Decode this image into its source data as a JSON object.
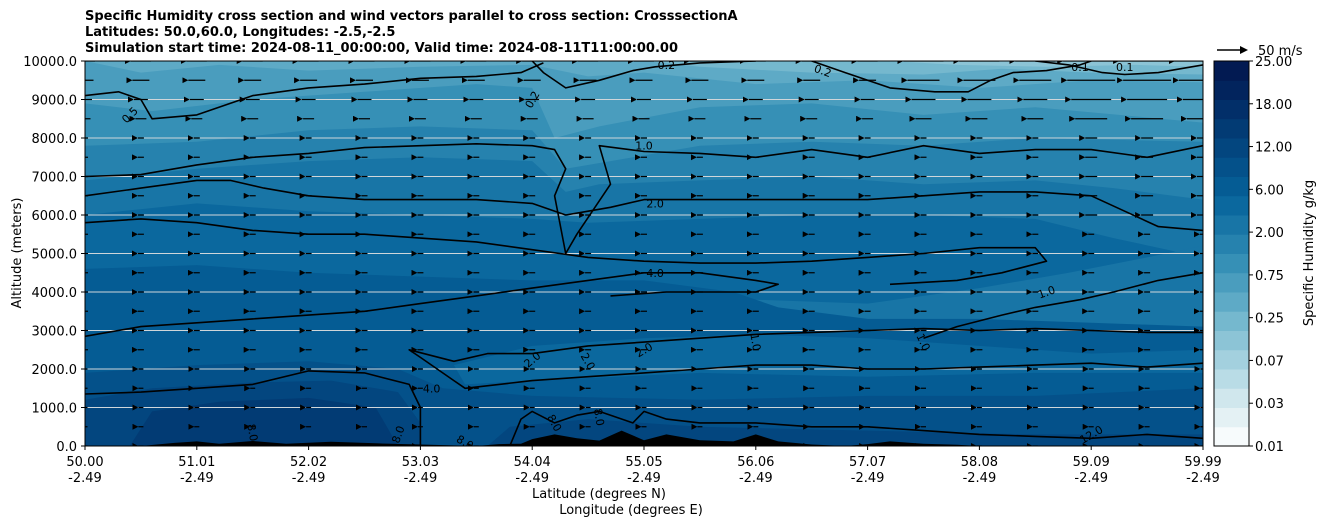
{
  "title_lines": [
    "Specific Humidity cross section and wind vectors parallel to cross section: CrosssectionA",
    "Latitudes: 50.0,60.0, Longitudes: -2.5,-2.5",
    "Simulation start time: 2024-08-11_00:00:00, Valid time: 2024-08-11T11:00:00.00"
  ],
  "chart_data": {
    "type": "heatmap",
    "subtype": "filled contour cross section with contour lines and wind quiver",
    "ylabel": "Altitude (meters)",
    "xlabel_lines": [
      "Latitude (degrees N)",
      "Longitude (degrees E)"
    ],
    "y_range": [
      0,
      10000
    ],
    "y_ticks": [
      "0.0",
      "1000.0",
      "2000.0",
      "3000.0",
      "4000.0",
      "5000.0",
      "6000.0",
      "7000.0",
      "8000.0",
      "9000.0",
      "10000.0"
    ],
    "x_range": [
      0,
      10
    ],
    "x_ticks": [
      {
        "lat": "50.00",
        "lon": "-2.49"
      },
      {
        "lat": "51.01",
        "lon": "-2.49"
      },
      {
        "lat": "52.02",
        "lon": "-2.49"
      },
      {
        "lat": "53.03",
        "lon": "-2.49"
      },
      {
        "lat": "54.04",
        "lon": "-2.49"
      },
      {
        "lat": "55.05",
        "lon": "-2.49"
      },
      {
        "lat": "56.06",
        "lon": "-2.49"
      },
      {
        "lat": "57.07",
        "lon": "-2.49"
      },
      {
        "lat": "58.08",
        "lon": "-2.49"
      },
      {
        "lat": "59.09",
        "lon": "-2.49"
      },
      {
        "lat": "59.99",
        "lon": "-2.49"
      }
    ],
    "grid": "horizontal",
    "colorbar": {
      "label": "Specific Humidity g/kg",
      "tick_labels": [
        "0.01",
        "0.03",
        "0.07",
        "0.25",
        "0.75",
        "2.00",
        "6.00",
        "12.00",
        "18.00",
        "25.00"
      ],
      "colors": [
        "#f7fbfc",
        "#e4f1f4",
        "#d0e7ed",
        "#b9dce6",
        "#a3d0de",
        "#8cc4d6",
        "#75b8ce",
        "#5eaac6",
        "#4a9dbe",
        "#3690b6",
        "#2682ae",
        "#1875a6",
        "#0b689e",
        "#055c94",
        "#04518a",
        "#03467f",
        "#023b74",
        "#022f69",
        "#02245d",
        "#021a52"
      ]
    },
    "quiver_key": {
      "label": "50 m/s",
      "value": 50
    },
    "contour_labels": [
      "0.1",
      "0.1",
      "0.2",
      "0.2",
      "0.2",
      "0.5",
      "1.0",
      "1.0",
      "1.0",
      "1.0",
      "2.0",
      "2.0",
      "2.0",
      "2.0",
      "4.0",
      "4.0",
      "8.0",
      "8.0",
      "8.0",
      "8.0",
      "8.0",
      "12.0"
    ],
    "contours": [
      {
        "level": 0.5,
        "label": "0.5",
        "points": [
          [
            0,
            9100
          ],
          [
            0.3,
            9200
          ],
          [
            0.5,
            9000
          ],
          [
            0.6,
            8500
          ],
          [
            1.0,
            8600
          ],
          [
            1.5,
            9100
          ],
          [
            2.0,
            9300
          ],
          [
            2.5,
            9400
          ],
          [
            3.0,
            9550
          ],
          [
            3.5,
            9600
          ],
          [
            3.9,
            9700
          ],
          [
            4.1,
            9950
          ]
        ]
      },
      {
        "level": 0.2,
        "label": "0.2",
        "points": [
          [
            4.0,
            10000
          ],
          [
            4.1,
            9700
          ],
          [
            4.3,
            9300
          ],
          [
            4.6,
            9500
          ],
          [
            4.9,
            9750
          ],
          [
            5.1,
            9850
          ],
          [
            5.5,
            9950
          ],
          [
            6.0,
            10000
          ]
        ]
      },
      {
        "level": 0.2,
        "label": "0.2",
        "points": [
          [
            6.5,
            10000
          ],
          [
            6.8,
            9700
          ],
          [
            7.2,
            9300
          ],
          [
            7.6,
            9200
          ],
          [
            7.9,
            9200
          ],
          [
            8.1,
            9500
          ],
          [
            8.3,
            9700
          ],
          [
            8.6,
            9750
          ],
          [
            8.9,
            9900
          ],
          [
            9.0,
            10000
          ]
        ]
      },
      {
        "level": 0.1,
        "label": "0.1",
        "points": [
          [
            8.5,
            10000
          ],
          [
            8.8,
            9900
          ],
          [
            9.1,
            9700
          ],
          [
            9.3,
            9650
          ],
          [
            9.6,
            9700
          ],
          [
            9.9,
            9850
          ],
          [
            10.0,
            9900
          ]
        ]
      },
      {
        "level": 1.0,
        "label": "1.0",
        "points": [
          [
            0,
            7000
          ],
          [
            0.5,
            7050
          ],
          [
            1.0,
            7300
          ],
          [
            1.5,
            7500
          ],
          [
            2.0,
            7600
          ],
          [
            2.5,
            7750
          ],
          [
            3.0,
            7800
          ],
          [
            3.5,
            7850
          ],
          [
            4.0,
            7800
          ],
          [
            4.2,
            7700
          ],
          [
            4.3,
            7200
          ],
          [
            4.2,
            6500
          ],
          [
            4.3,
            5000
          ],
          [
            4.4,
            5500
          ],
          [
            4.7,
            6800
          ],
          [
            4.6,
            7800
          ],
          [
            5.0,
            7650
          ],
          [
            5.5,
            7600
          ],
          [
            6.0,
            7500
          ],
          [
            6.5,
            7700
          ],
          [
            7.0,
            7500
          ],
          [
            7.5,
            7800
          ],
          [
            8.0,
            7600
          ],
          [
            8.5,
            7700
          ],
          [
            9.0,
            7700
          ],
          [
            9.5,
            7500
          ],
          [
            10.0,
            7800
          ]
        ]
      },
      {
        "level": 2.0,
        "label": "2.0",
        "points": [
          [
            0,
            6500
          ],
          [
            0.5,
            6700
          ],
          [
            1.0,
            6900
          ],
          [
            1.3,
            6900
          ],
          [
            1.6,
            6700
          ],
          [
            2.0,
            6500
          ],
          [
            2.5,
            6400
          ],
          [
            3.0,
            6400
          ],
          [
            3.5,
            6400
          ],
          [
            4.0,
            6300
          ],
          [
            4.3,
            6000
          ],
          [
            4.5,
            6100
          ],
          [
            4.7,
            6200
          ],
          [
            5.0,
            6400
          ],
          [
            5.5,
            6400
          ],
          [
            6.0,
            6400
          ],
          [
            6.5,
            6400
          ],
          [
            7.0,
            6400
          ],
          [
            7.5,
            6500
          ],
          [
            8.0,
            6600
          ],
          [
            8.5,
            6600
          ],
          [
            9.0,
            6500
          ],
          [
            9.3,
            6100
          ],
          [
            9.6,
            5700
          ],
          [
            10.0,
            5600
          ]
        ]
      },
      {
        "level": 4.0,
        "label": "4.0",
        "points": [
          [
            0,
            5800
          ],
          [
            0.5,
            5900
          ],
          [
            1.0,
            5800
          ],
          [
            1.5,
            5600
          ],
          [
            2.0,
            5500
          ],
          [
            2.5,
            5500
          ],
          [
            3.0,
            5400
          ],
          [
            3.5,
            5300
          ],
          [
            4.0,
            5100
          ],
          [
            4.5,
            4900
          ],
          [
            5.0,
            4800
          ],
          [
            5.5,
            4750
          ],
          [
            6.0,
            4750
          ],
          [
            6.5,
            4800
          ],
          [
            7.0,
            4900
          ],
          [
            7.5,
            5000
          ],
          [
            8.0,
            5150
          ],
          [
            8.5,
            5150
          ],
          [
            8.6,
            4800
          ],
          [
            8.2,
            4500
          ],
          [
            7.8,
            4300
          ],
          [
            7.2,
            4200
          ]
        ]
      },
      {
        "level": 2.0,
        "label": "2.0",
        "points": [
          [
            0,
            2850
          ],
          [
            0.5,
            3100
          ],
          [
            1.0,
            3200
          ],
          [
            1.5,
            3300
          ],
          [
            2.0,
            3400
          ],
          [
            2.5,
            3500
          ],
          [
            3.0,
            3700
          ],
          [
            3.5,
            3900
          ],
          [
            4.0,
            4100
          ],
          [
            4.5,
            4300
          ],
          [
            5.0,
            4500
          ],
          [
            5.5,
            4500
          ],
          [
            6.0,
            4300
          ],
          [
            6.2,
            4200
          ],
          [
            6.0,
            4000
          ],
          [
            5.7,
            4000
          ],
          [
            5.2,
            4000
          ],
          [
            4.7,
            3900
          ]
        ]
      },
      {
        "level": 1.0,
        "label": "1.0",
        "points": [
          [
            7.5,
            2800
          ],
          [
            7.8,
            3100
          ],
          [
            8.2,
            3400
          ],
          [
            8.5,
            3600
          ],
          [
            8.9,
            3800
          ],
          [
            9.2,
            4000
          ],
          [
            9.6,
            4300
          ],
          [
            10.0,
            4500
          ]
        ]
      },
      {
        "level": 2.0,
        "label": "2.0",
        "points": [
          [
            10.0,
            2950
          ],
          [
            9.5,
            2950
          ],
          [
            9.0,
            3000
          ],
          [
            8.5,
            3050
          ],
          [
            8.0,
            3000
          ],
          [
            7.5,
            3050
          ],
          [
            7.0,
            3000
          ],
          [
            6.5,
            2950
          ],
          [
            6.0,
            2900
          ],
          [
            5.5,
            2800
          ],
          [
            5.0,
            2700
          ],
          [
            4.5,
            2600
          ],
          [
            4.0,
            2400
          ],
          [
            3.6,
            2400
          ],
          [
            3.3,
            2200
          ],
          [
            2.9,
            2500
          ],
          [
            3.0,
            2300
          ],
          [
            3.3,
            1700
          ],
          [
            3.4,
            1500
          ],
          [
            4.0,
            1700
          ],
          [
            4.5,
            1800
          ],
          [
            5.0,
            1900
          ],
          [
            5.5,
            2000
          ],
          [
            6.0,
            2100
          ],
          [
            6.5,
            2100
          ],
          [
            7.0,
            2000
          ],
          [
            7.5,
            2000
          ],
          [
            8.0,
            2050
          ],
          [
            8.5,
            2100
          ],
          [
            9.0,
            2150
          ],
          [
            9.5,
            2050
          ],
          [
            10.0,
            2150
          ]
        ]
      },
      {
        "level": 8.0,
        "label": "8.0",
        "points": [
          [
            0,
            1350
          ],
          [
            0.5,
            1400
          ],
          [
            1.0,
            1500
          ],
          [
            1.5,
            1600
          ],
          [
            2.0,
            1950
          ],
          [
            2.5,
            1900
          ],
          [
            2.9,
            1600
          ],
          [
            3.0,
            1000
          ],
          [
            3.0,
            0
          ]
        ]
      },
      {
        "level": 8.0,
        "label": "8.0",
        "points": [
          [
            3.8,
            0
          ],
          [
            3.9,
            700
          ],
          [
            4.0,
            900
          ],
          [
            4.2,
            600
          ],
          [
            4.4,
            800
          ],
          [
            4.6,
            900
          ],
          [
            4.9,
            600
          ],
          [
            5.0,
            900
          ],
          [
            5.2,
            700
          ],
          [
            5.5,
            600
          ],
          [
            6.0,
            600
          ],
          [
            6.5,
            500
          ],
          [
            7.0,
            500
          ],
          [
            7.5,
            400
          ],
          [
            8.0,
            300
          ],
          [
            8.5,
            250
          ],
          [
            9.0,
            200
          ],
          [
            9.5,
            300
          ],
          [
            10.0,
            200
          ]
        ]
      }
    ]
  }
}
